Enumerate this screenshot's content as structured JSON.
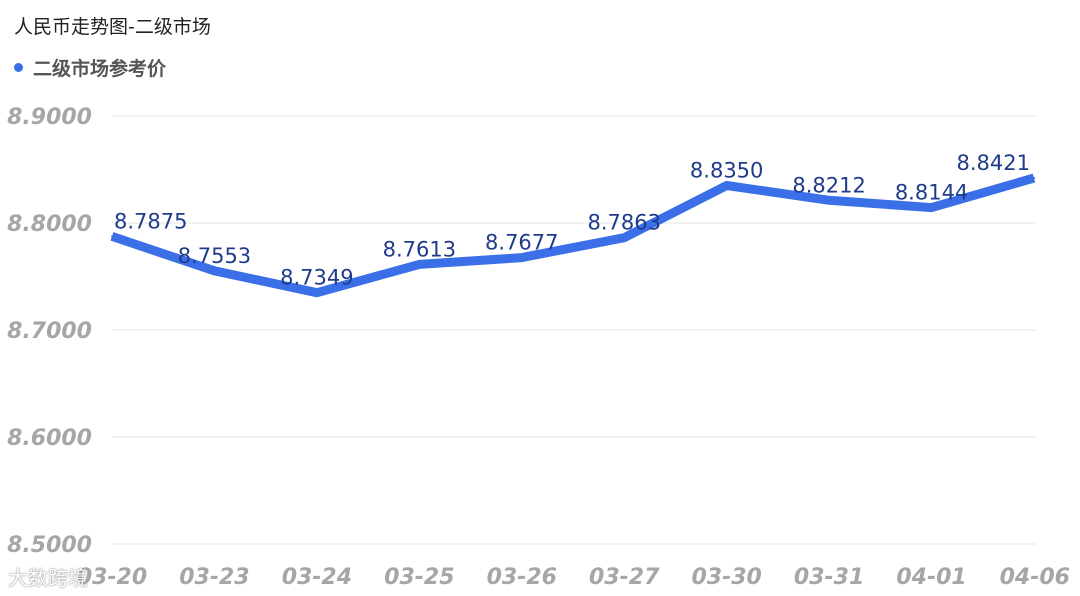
{
  "title": "人民币走势图-二级市场",
  "legend": {
    "label": "二级市场参考价"
  },
  "colors": {
    "line": "#3b6fe8",
    "label": "#1f3b8a",
    "grid": "#e6e6e6",
    "tick": "#a6a6a6"
  },
  "watermark": "大数跨境",
  "chart_data": {
    "type": "line",
    "title": "人民币走势图-二级市场",
    "categories": [
      "03-20",
      "03-23",
      "03-24",
      "03-25",
      "03-26",
      "03-27",
      "03-30",
      "03-31",
      "04-01",
      "04-06"
    ],
    "series": [
      {
        "name": "二级市场参考价",
        "values": [
          8.7875,
          8.7553,
          8.7349,
          8.7613,
          8.7677,
          8.7863,
          8.835,
          8.8212,
          8.8144,
          8.8421
        ]
      }
    ],
    "value_labels": [
      "8.7875",
      "8.7553",
      "8.7349",
      "8.7613",
      "8.7677",
      "8.7863",
      "8.8350",
      "8.8212",
      "8.8144",
      "8.8421"
    ],
    "yticks": [
      "8.9000",
      "8.8000",
      "8.7000",
      "8.6000",
      "8.5000"
    ],
    "ylim": [
      8.5,
      8.9
    ],
    "grid": true,
    "legend_position": "top-left"
  }
}
